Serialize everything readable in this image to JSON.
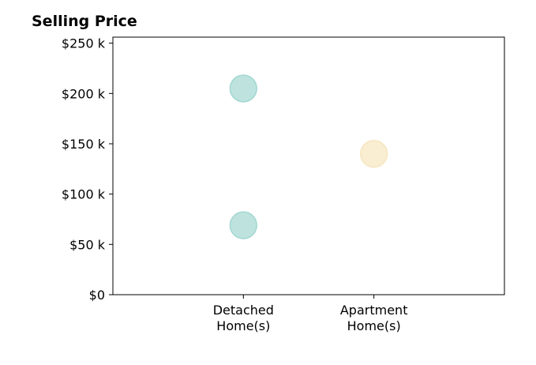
{
  "chart_data": {
    "type": "scatter",
    "title": "Selling Price",
    "xlabel": "",
    "ylabel": "",
    "categories": [
      "Detached\nHome(s)",
      "Apartment\nHome(s)"
    ],
    "category_slots": 3,
    "ylim": [
      0,
      256000
    ],
    "y_ticks": [
      0,
      50000,
      100000,
      150000,
      200000,
      250000
    ],
    "y_tick_labels": [
      "$0",
      "$50 k",
      "$100 k",
      "$150 k",
      "$200 k",
      "$250 k"
    ],
    "points": [
      {
        "category": 0,
        "value": 205000,
        "color": "#7ec8c0"
      },
      {
        "category": 0,
        "value": 69000,
        "color": "#7ec8c0"
      },
      {
        "category": 1,
        "value": 140000,
        "color": "#f3dca6"
      }
    ],
    "grid": false,
    "legend": "none"
  }
}
